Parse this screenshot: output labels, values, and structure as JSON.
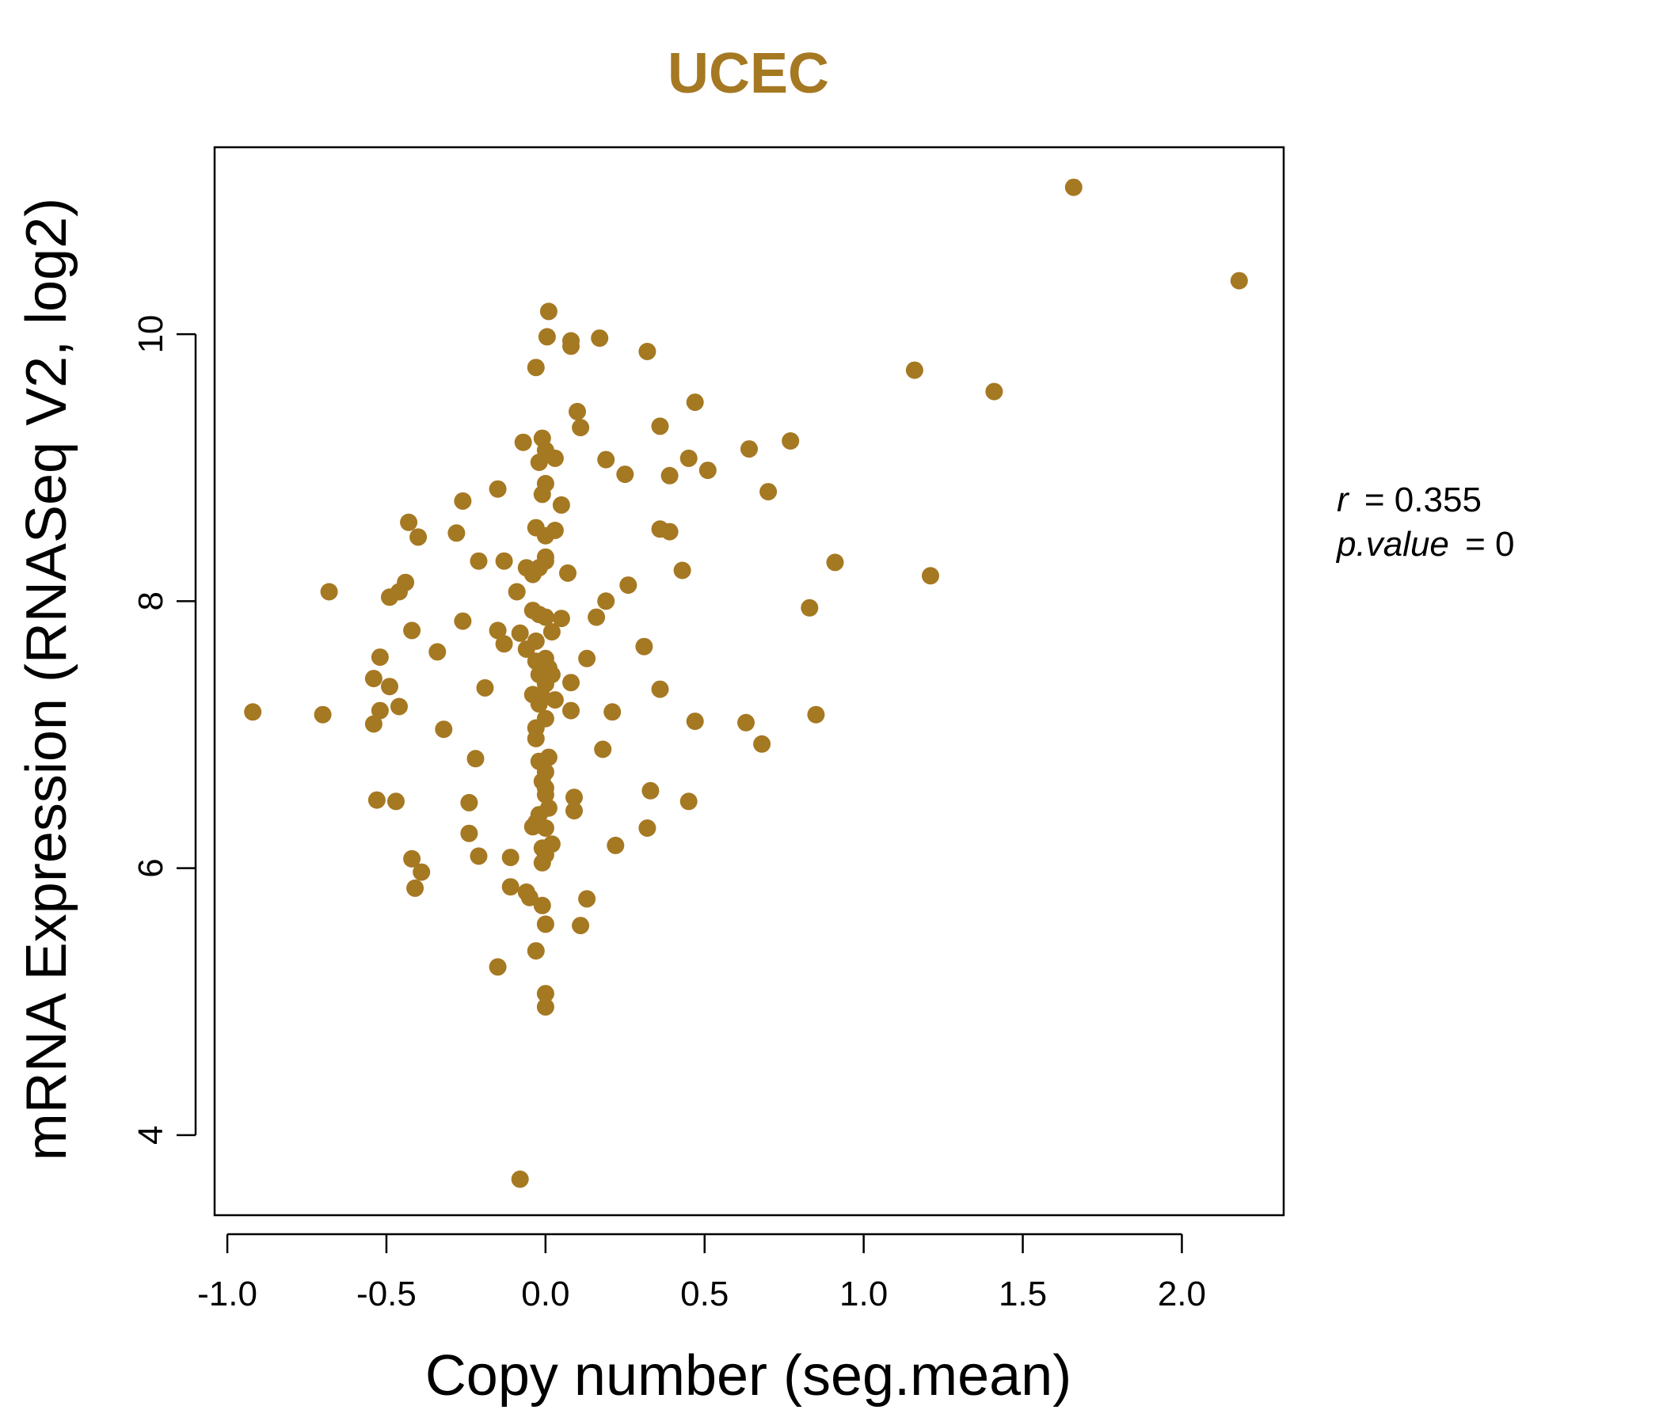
{
  "chart_data": {
    "type": "scatter",
    "title": "UCEC",
    "xlabel": "Copy number (seg.mean)",
    "ylabel": "mRNA Expression (RNASeq V2, log2)",
    "xlim": [
      -1.04,
      2.32
    ],
    "ylim": [
      3.4,
      11.4
    ],
    "x_ticks": [
      -1.0,
      -0.5,
      0.0,
      0.5,
      1.0,
      1.5,
      2.0
    ],
    "x_tick_labels": [
      "-1.0",
      "-0.5",
      "0.0",
      "0.5",
      "1.0",
      "1.5",
      "2.0"
    ],
    "y_ticks": [
      4,
      6,
      8,
      10
    ],
    "y_tick_labels": [
      "4",
      "6",
      "8",
      "10"
    ],
    "grid": false,
    "color": "#A57822",
    "annotations": {
      "r_label": "r",
      "r_value": "= 0.355",
      "p_label": "p.value",
      "p_value": "= 0"
    },
    "points": [
      [
        1.66,
        11.1
      ],
      [
        2.18,
        10.4
      ],
      [
        1.16,
        9.73
      ],
      [
        1.41,
        9.57
      ],
      [
        0.01,
        10.17
      ],
      [
        0.005,
        9.98
      ],
      [
        0.08,
        9.91
      ],
      [
        0.08,
        9.95
      ],
      [
        0.17,
        9.97
      ],
      [
        0.32,
        9.87
      ],
      [
        -0.03,
        9.75
      ],
      [
        0.1,
        9.42
      ],
      [
        0.47,
        9.49
      ],
      [
        0.36,
        9.31
      ],
      [
        0.11,
        9.3
      ],
      [
        0.77,
        9.2
      ],
      [
        0.64,
        9.14
      ],
      [
        0.45,
        9.07
      ],
      [
        0.19,
        9.06
      ],
      [
        0.25,
        8.95
      ],
      [
        0.39,
        8.94
      ],
      [
        0.51,
        8.98
      ],
      [
        -0.07,
        9.19
      ],
      [
        -0.01,
        9.22
      ],
      [
        0.0,
        9.13
      ],
      [
        0.03,
        9.07
      ],
      [
        -0.02,
        9.04
      ],
      [
        0.0,
        8.88
      ],
      [
        -0.01,
        8.8
      ],
      [
        0.05,
        8.72
      ],
      [
        -0.15,
        8.84
      ],
      [
        -0.26,
        8.75
      ],
      [
        0.7,
        8.82
      ],
      [
        -0.43,
        8.59
      ],
      [
        -0.4,
        8.48
      ],
      [
        -0.28,
        8.51
      ],
      [
        -0.03,
        8.55
      ],
      [
        0.03,
        8.53
      ],
      [
        0.0,
        8.49
      ],
      [
        0.36,
        8.54
      ],
      [
        0.39,
        8.52
      ],
      [
        0.91,
        8.29
      ],
      [
        1.21,
        8.19
      ],
      [
        -0.21,
        8.3
      ],
      [
        -0.13,
        8.3
      ],
      [
        -0.06,
        8.25
      ],
      [
        -0.04,
        8.2
      ],
      [
        0.0,
        8.3
      ],
      [
        0.0,
        8.33
      ],
      [
        -0.02,
        8.25
      ],
      [
        0.07,
        8.21
      ],
      [
        0.43,
        8.23
      ],
      [
        0.26,
        8.12
      ],
      [
        0.19,
        8.0
      ],
      [
        0.83,
        7.95
      ],
      [
        -0.68,
        8.07
      ],
      [
        -0.49,
        8.03
      ],
      [
        -0.46,
        8.07
      ],
      [
        -0.44,
        8.14
      ],
      [
        -0.09,
        8.07
      ],
      [
        -0.04,
        7.93
      ],
      [
        -0.02,
        7.9
      ],
      [
        0.0,
        7.88
      ],
      [
        0.05,
        7.87
      ],
      [
        0.16,
        7.88
      ],
      [
        -0.26,
        7.85
      ],
      [
        -0.42,
        7.78
      ],
      [
        -0.15,
        7.78
      ],
      [
        -0.08,
        7.76
      ],
      [
        0.02,
        7.77
      ],
      [
        -0.13,
        7.68
      ],
      [
        -0.34,
        7.62
      ],
      [
        -0.52,
        7.58
      ],
      [
        -0.06,
        7.64
      ],
      [
        -0.03,
        7.7
      ],
      [
        0.0,
        7.57
      ],
      [
        0.13,
        7.57
      ],
      [
        0.31,
        7.66
      ],
      [
        -0.03,
        7.55
      ],
      [
        0.01,
        7.5
      ],
      [
        -0.02,
        7.45
      ],
      [
        0.02,
        7.45
      ],
      [
        -0.54,
        7.42
      ],
      [
        -0.49,
        7.36
      ],
      [
        -0.19,
        7.35
      ],
      [
        0.0,
        7.38
      ],
      [
        0.08,
        7.39
      ],
      [
        0.36,
        7.34
      ],
      [
        -0.04,
        7.3
      ],
      [
        -0.01,
        7.28
      ],
      [
        0.03,
        7.26
      ],
      [
        -0.02,
        7.23
      ],
      [
        -0.92,
        7.17
      ],
      [
        -0.7,
        7.15
      ],
      [
        -0.52,
        7.18
      ],
      [
        -0.46,
        7.21
      ],
      [
        -0.54,
        7.08
      ],
      [
        -0.32,
        7.04
      ],
      [
        0.0,
        7.12
      ],
      [
        0.08,
        7.18
      ],
      [
        0.21,
        7.17
      ],
      [
        0.47,
        7.1
      ],
      [
        0.63,
        7.09
      ],
      [
        0.85,
        7.15
      ],
      [
        -0.03,
        7.05
      ],
      [
        -0.03,
        6.97
      ],
      [
        0.18,
        6.89
      ],
      [
        0.68,
        6.93
      ],
      [
        -0.22,
        6.82
      ],
      [
        -0.02,
        6.8
      ],
      [
        0.01,
        6.83
      ],
      [
        0.0,
        6.72
      ],
      [
        -0.01,
        6.65
      ],
      [
        0.0,
        6.6
      ],
      [
        0.0,
        6.55
      ],
      [
        0.09,
        6.53
      ],
      [
        0.33,
        6.58
      ],
      [
        -0.53,
        6.51
      ],
      [
        -0.47,
        6.5
      ],
      [
        -0.24,
        6.49
      ],
      [
        0.45,
        6.5
      ],
      [
        0.09,
        6.43
      ],
      [
        -0.02,
        6.4
      ],
      [
        0.01,
        6.45
      ],
      [
        -0.04,
        6.31
      ],
      [
        0.0,
        6.3
      ],
      [
        -0.03,
        6.34
      ],
      [
        0.32,
        6.3
      ],
      [
        -0.24,
        6.26
      ],
      [
        0.02,
        6.18
      ],
      [
        -0.01,
        6.15
      ],
      [
        0.0,
        6.1
      ],
      [
        0.22,
        6.17
      ],
      [
        -0.21,
        6.09
      ],
      [
        -0.11,
        6.08
      ],
      [
        -0.42,
        6.07
      ],
      [
        -0.01,
        6.04
      ],
      [
        -0.39,
        5.97
      ],
      [
        -0.41,
        5.85
      ],
      [
        -0.11,
        5.86
      ],
      [
        -0.06,
        5.82
      ],
      [
        -0.05,
        5.78
      ],
      [
        -0.01,
        5.72
      ],
      [
        0.13,
        5.77
      ],
      [
        0.0,
        5.58
      ],
      [
        0.11,
        5.57
      ],
      [
        -0.03,
        5.38
      ],
      [
        -0.15,
        5.26
      ],
      [
        0.0,
        5.06
      ],
      [
        0.0,
        4.96
      ],
      [
        -0.08,
        3.67
      ]
    ]
  }
}
